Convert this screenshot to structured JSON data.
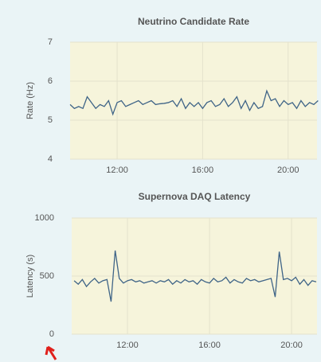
{
  "chart_data": [
    {
      "type": "line",
      "title": "Neutrino Candidate Rate",
      "ylabel": "Rate (Hz)",
      "color": "#3f6487",
      "grid": true,
      "x": [
        9.8,
        10,
        10.2,
        10.4,
        10.6,
        10.8,
        11,
        11.2,
        11.4,
        11.6,
        11.8,
        12,
        12.2,
        12.4,
        12.6,
        12.8,
        13,
        13.2,
        13.4,
        13.6,
        13.8,
        14,
        14.2,
        14.4,
        14.6,
        14.8,
        15,
        15.2,
        15.4,
        15.6,
        15.8,
        16,
        16.2,
        16.4,
        16.6,
        16.8,
        17,
        17.2,
        17.4,
        17.6,
        17.8,
        18,
        18.2,
        18.4,
        18.6,
        18.8,
        19,
        19.2,
        19.4,
        19.6,
        19.8,
        20,
        20.2,
        20.4,
        20.6,
        20.8,
        21,
        21.2,
        21.4
      ],
      "values": [
        5.4,
        5.3,
        5.35,
        5.3,
        5.6,
        5.45,
        5.3,
        5.4,
        5.35,
        5.5,
        5.15,
        5.45,
        5.5,
        5.35,
        5.4,
        5.45,
        5.5,
        5.4,
        5.45,
        5.5,
        5.4,
        5.42,
        5.43,
        5.45,
        5.5,
        5.35,
        5.55,
        5.3,
        5.45,
        5.35,
        5.45,
        5.3,
        5.45,
        5.5,
        5.35,
        5.4,
        5.55,
        5.35,
        5.45,
        5.6,
        5.3,
        5.5,
        5.25,
        5.45,
        5.3,
        5.35,
        5.75,
        5.5,
        5.55,
        5.35,
        5.5,
        5.4,
        5.45,
        5.3,
        5.5,
        5.35,
        5.45,
        5.4,
        5.5
      ],
      "xlim": [
        9.8,
        21.35
      ],
      "ylim": [
        4,
        7
      ],
      "yticks": [
        4,
        5,
        6,
        7
      ],
      "xticks": [
        {
          "value": 12,
          "label": "12:00"
        },
        {
          "value": 16,
          "label": "16:00"
        },
        {
          "value": 20,
          "label": "20:00"
        }
      ]
    },
    {
      "type": "line",
      "title": "Supernova DAQ Latency",
      "ylabel": "Latency (s)",
      "color": "#3f6487",
      "grid": true,
      "x": [
        9.4,
        9.6,
        9.8,
        10,
        10.2,
        10.4,
        10.6,
        10.8,
        11,
        11.2,
        11.4,
        11.6,
        11.8,
        12,
        12.2,
        12.4,
        12.6,
        12.8,
        13,
        13.2,
        13.4,
        13.6,
        13.8,
        14,
        14.2,
        14.4,
        14.6,
        14.8,
        15,
        15.2,
        15.4,
        15.6,
        15.8,
        16,
        16.2,
        16.4,
        16.6,
        16.8,
        17,
        17.2,
        17.4,
        17.6,
        17.8,
        18,
        18.2,
        18.4,
        18.6,
        18.8,
        19,
        19.2,
        19.4,
        19.6,
        19.8,
        20,
        20.2,
        20.4,
        20.6,
        20.8,
        21,
        21.2
      ],
      "values": [
        460,
        430,
        470,
        410,
        450,
        480,
        440,
        460,
        470,
        280,
        720,
        480,
        440,
        460,
        470,
        450,
        460,
        440,
        450,
        460,
        440,
        460,
        450,
        470,
        430,
        460,
        440,
        470,
        450,
        460,
        430,
        470,
        450,
        440,
        480,
        450,
        460,
        490,
        440,
        470,
        450,
        440,
        480,
        460,
        470,
        450,
        460,
        470,
        480,
        320,
        710,
        470,
        480,
        460,
        490,
        430,
        470,
        420,
        460,
        450
      ],
      "xlim": [
        9.28,
        21.24
      ],
      "ylim": [
        0,
        1000
      ],
      "yticks": [
        0,
        500,
        1000
      ],
      "xticks": [
        {
          "value": 12,
          "label": "12:00"
        },
        {
          "value": 16,
          "label": "16:00"
        },
        {
          "value": 20,
          "label": "20:00"
        }
      ]
    }
  ]
}
